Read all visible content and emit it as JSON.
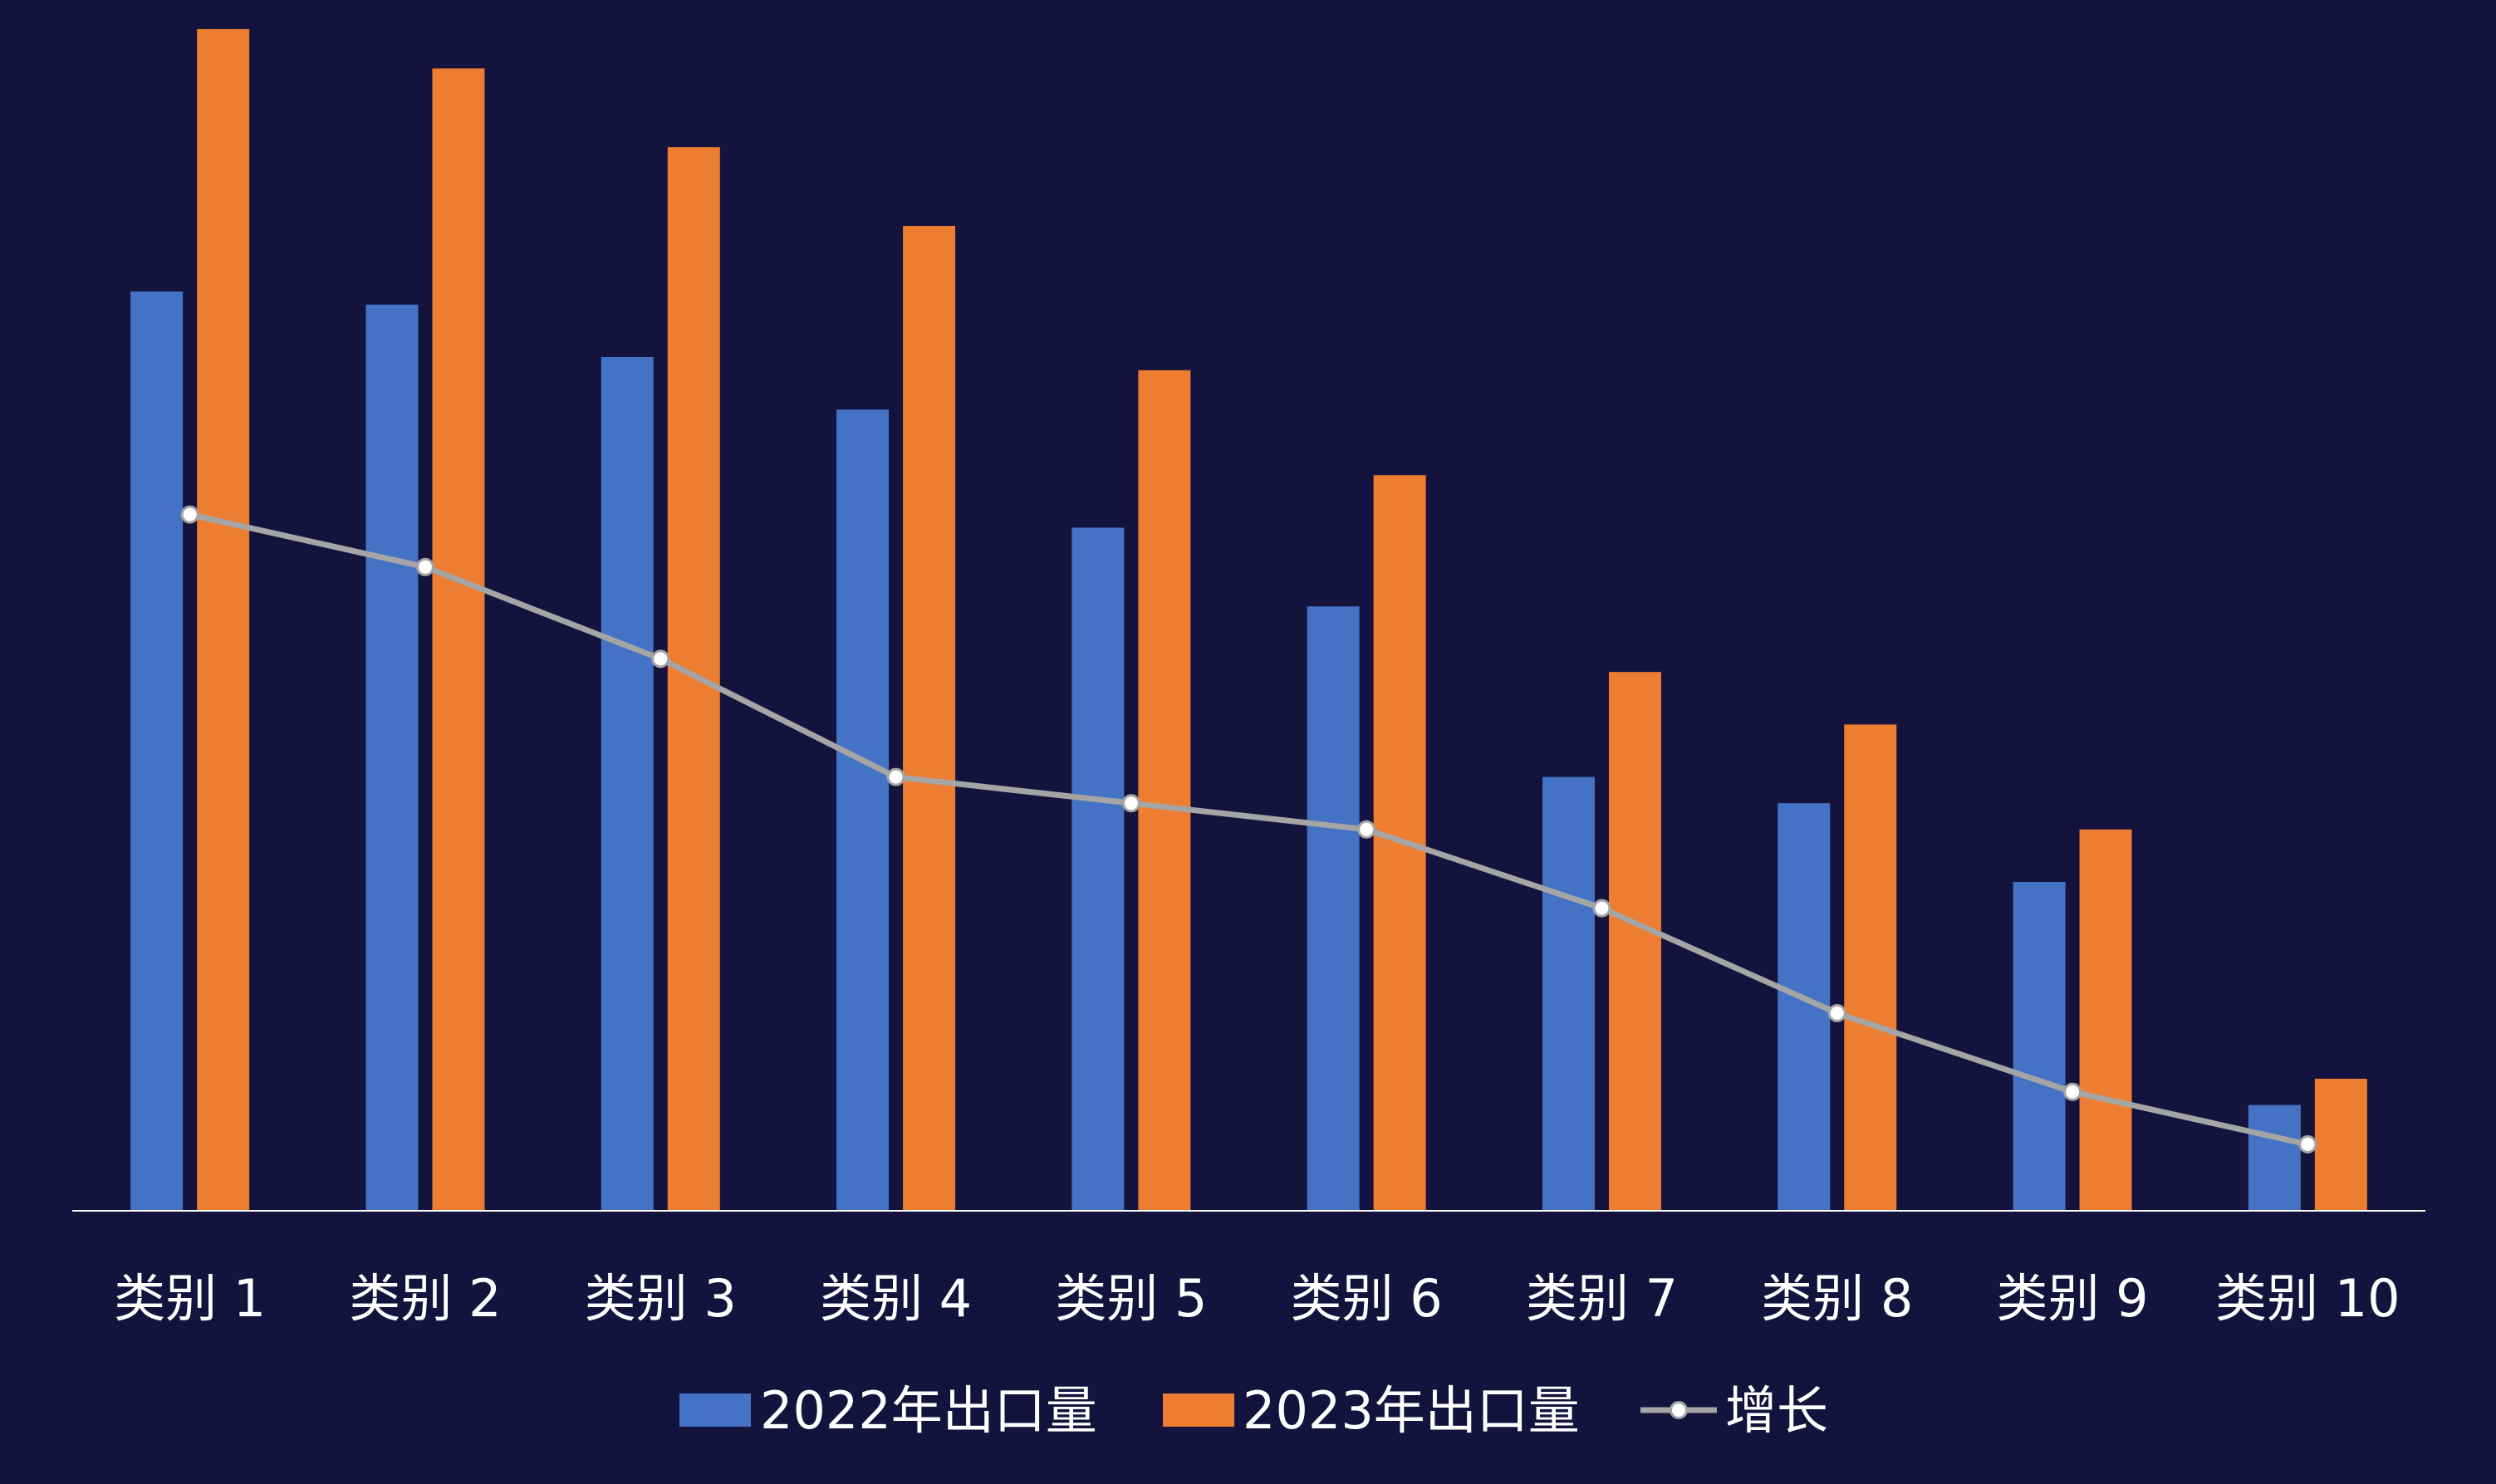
{
  "chart_data": {
    "type": "bar",
    "categories": [
      "类别 1",
      "类别 2",
      "类别 3",
      "类别 4",
      "类别 5",
      "类别 6",
      "类别 7",
      "类别 8",
      "类别 9",
      "类别 10"
    ],
    "series": [
      {
        "name": "2022年出口量",
        "type": "bar",
        "color": "#4472c4",
        "values": [
          70,
          69,
          65,
          61,
          52,
          46,
          33,
          31,
          25,
          8
        ]
      },
      {
        "name": "2023年出口量",
        "type": "bar",
        "color": "#ed7d31",
        "values": [
          90,
          87,
          81,
          75,
          64,
          56,
          41,
          37,
          29,
          10
        ]
      },
      {
        "name": "增长",
        "type": "line",
        "color": "#a5a5a5",
        "marker_color": "#ffffff",
        "values": [
          53,
          49,
          42,
          33,
          31,
          29,
          23,
          15,
          9,
          5
        ]
      }
    ],
    "ylim": [
      0,
      90
    ],
    "grid": false,
    "legend_position": "bottom",
    "background": "#14133d",
    "axis_color": "#ffffff",
    "label_color": "#ffffff"
  }
}
